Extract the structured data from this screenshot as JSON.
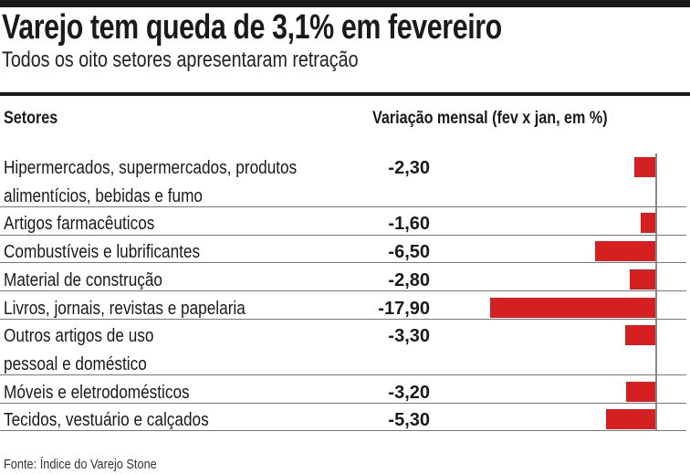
{
  "chart_data": {
    "type": "bar",
    "orientation": "horizontal",
    "title": "Varejo tem queda de 3,1% em fevereiro",
    "subtitle": "Todos os oito setores apresentaram retração",
    "column_headers": [
      "Setores",
      "Variação mensal (fev x jan, em %)"
    ],
    "categories": [
      [
        "Hipermercados, supermercados, produtos",
        "alimentícios, bebidas e fumo"
      ],
      [
        "Artigos farmacêuticos"
      ],
      [
        "Combustíveis e lubrificantes"
      ],
      [
        "Material de construção"
      ],
      [
        "Livros, jornais, revistas e papelaria"
      ],
      [
        "Outros artigos de uso",
        "pessoal e doméstico"
      ],
      [
        "Móveis e eletrodomésticos"
      ],
      [
        "Tecidos, vestuário e calçados"
      ]
    ],
    "values": [
      -2.3,
      -1.6,
      -6.5,
      -2.8,
      -17.9,
      -3.3,
      -3.2,
      -5.3
    ],
    "value_labels": [
      "-2,30",
      "-1,60",
      "-6,50",
      "-2,80",
      "-17,90",
      "-3,30",
      "-3,20",
      "-5,30"
    ],
    "xlim": [
      -18,
      0
    ],
    "bar_color": "#d42020",
    "source": "Fonte: Índice do Varejo Stone"
  }
}
